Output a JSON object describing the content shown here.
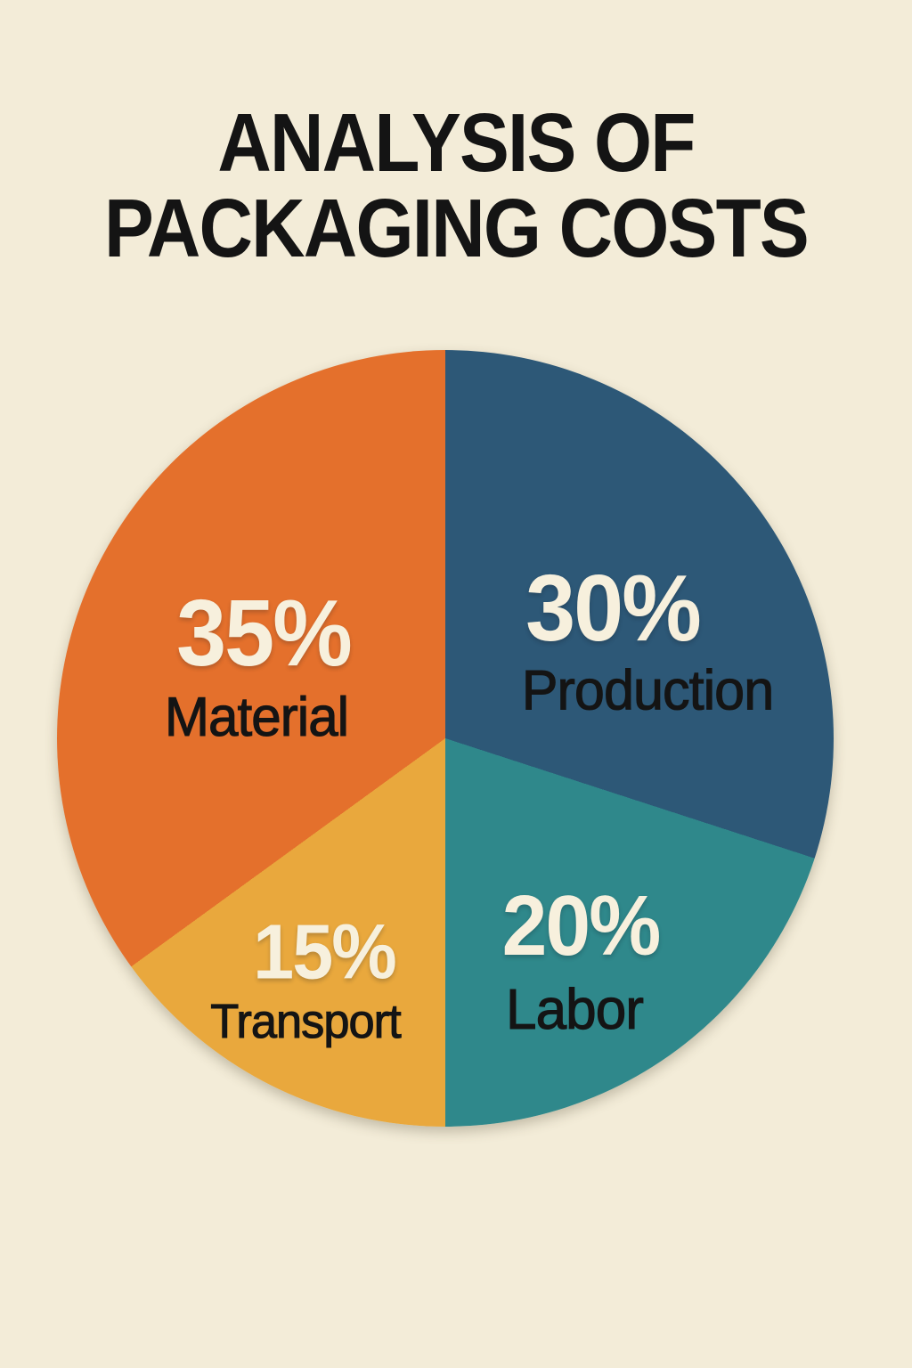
{
  "title": {
    "line1": "ANALYSIS OF",
    "line2": "PACKAGING COSTS"
  },
  "colors": {
    "background": "#f3ecd8",
    "value_text": "#f7f0dd",
    "label_text": "#141414",
    "title_text": "#141414"
  },
  "chart_data": {
    "type": "pie",
    "title": "ANALYSIS OF PACKAGING COSTS",
    "unit": "percent",
    "direction": "clockwise",
    "start_angle_deg": 0,
    "legend": "none",
    "labels_position": "inside-slices",
    "slices": [
      {
        "label": "Production",
        "value": 30,
        "display": "30%",
        "color": "#2d5877"
      },
      {
        "label": "Labor",
        "value": 20,
        "display": "20%",
        "color": "#2f888b"
      },
      {
        "label": "Transport",
        "value": 15,
        "display": "15%",
        "color": "#e9a83d"
      },
      {
        "label": "Material",
        "value": 35,
        "display": "35%",
        "color": "#e4702c"
      }
    ]
  }
}
